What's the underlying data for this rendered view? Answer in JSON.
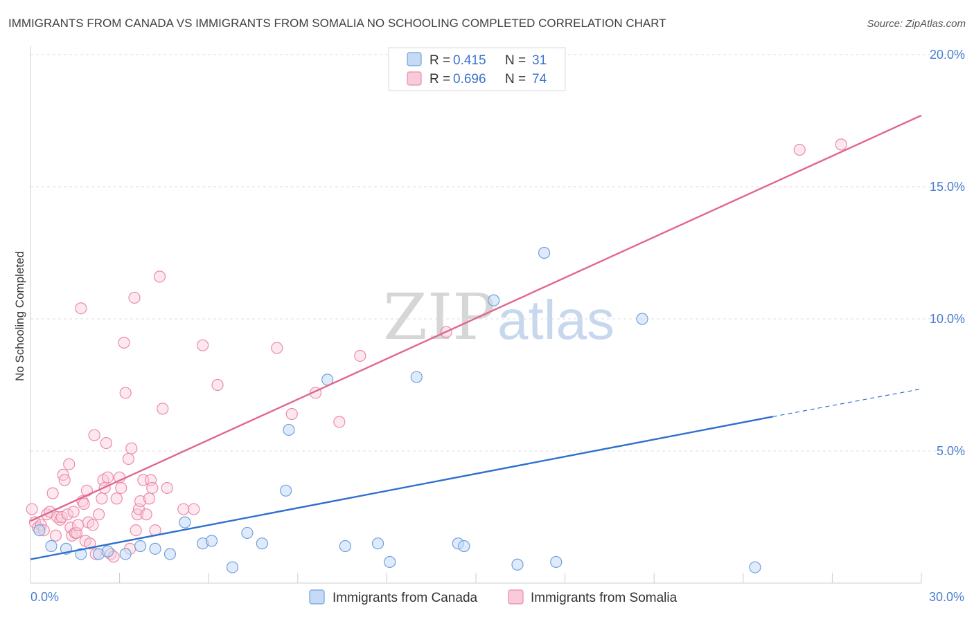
{
  "chart_data": {
    "type": "scatter",
    "title": "IMMIGRANTS FROM CANADA VS IMMIGRANTS FROM SOMALIA NO SCHOOLING COMPLETED CORRELATION CHART",
    "source": "Source: ZipAtlas.com",
    "ylabel": "No Schooling Completed",
    "xlim": [
      0,
      30
    ],
    "ylim": [
      0,
      20.5
    ],
    "x_tick_labels": {
      "left": "0.0%",
      "right": "30.0%"
    },
    "y_ticks": [
      {
        "value": 5,
        "label": "5.0%"
      },
      {
        "value": 10,
        "label": "10.0%"
      },
      {
        "value": 15,
        "label": "15.0%"
      },
      {
        "value": 20,
        "label": "20.0%"
      }
    ],
    "watermark": {
      "zip": "ZIP",
      "atlas": "atlas"
    },
    "legend_box": [
      {
        "r_label": "R =",
        "r_value": "0.415",
        "n_label": "N =",
        "n_value": "31"
      },
      {
        "r_label": "R =",
        "r_value": "0.696",
        "n_label": "N =",
        "n_value": "74"
      }
    ],
    "series": [
      {
        "name": "Immigrants from Canada",
        "color": "#6fa0e0",
        "fill": "#c5daf5",
        "line_color": "#2f6fcf",
        "trend": {
          "x0": 0,
          "y0": 0.9,
          "x1": 25.0,
          "y1": 6.3,
          "x_dash_end": 30,
          "y_dash_end": 7.35
        },
        "points": [
          [
            0.3,
            2.0
          ],
          [
            0.7,
            1.4
          ],
          [
            1.2,
            1.3
          ],
          [
            1.7,
            1.1
          ],
          [
            2.3,
            1.1
          ],
          [
            2.6,
            1.2
          ],
          [
            3.2,
            1.1
          ],
          [
            3.7,
            1.4
          ],
          [
            4.2,
            1.3
          ],
          [
            4.7,
            1.1
          ],
          [
            5.2,
            2.3
          ],
          [
            5.8,
            1.5
          ],
          [
            6.1,
            1.6
          ],
          [
            6.8,
            0.6
          ],
          [
            7.3,
            1.9
          ],
          [
            7.8,
            1.5
          ],
          [
            8.6,
            3.5
          ],
          [
            8.7,
            5.8
          ],
          [
            10.0,
            7.7
          ],
          [
            10.6,
            1.4
          ],
          [
            11.7,
            1.5
          ],
          [
            12.1,
            0.8
          ],
          [
            13.0,
            7.8
          ],
          [
            14.4,
            1.5
          ],
          [
            14.6,
            1.4
          ],
          [
            15.6,
            10.7
          ],
          [
            16.4,
            0.7
          ],
          [
            17.3,
            12.5
          ],
          [
            17.7,
            0.8
          ],
          [
            20.6,
            10.0
          ],
          [
            24.4,
            0.6
          ]
        ]
      },
      {
        "name": "Immigrants from Somalia",
        "color": "#ec8aa8",
        "fill": "#f9cbda",
        "line_color": "#e06690",
        "trend": {
          "x0": 0,
          "y0": 2.35,
          "x1": 30,
          "y1": 17.7
        },
        "points": [
          [
            0.05,
            2.8
          ],
          [
            0.15,
            2.3
          ],
          [
            0.25,
            2.1
          ],
          [
            0.35,
            2.2
          ],
          [
            0.45,
            2.0
          ],
          [
            0.55,
            2.6
          ],
          [
            0.65,
            2.7
          ],
          [
            0.75,
            3.4
          ],
          [
            0.85,
            1.8
          ],
          [
            0.9,
            2.5
          ],
          [
            1.0,
            2.4
          ],
          [
            1.05,
            2.5
          ],
          [
            1.1,
            4.1
          ],
          [
            1.15,
            3.9
          ],
          [
            1.25,
            2.6
          ],
          [
            1.3,
            4.5
          ],
          [
            1.35,
            2.1
          ],
          [
            1.4,
            1.8
          ],
          [
            1.45,
            2.7
          ],
          [
            1.5,
            1.9
          ],
          [
            1.55,
            1.9
          ],
          [
            1.6,
            2.2
          ],
          [
            1.7,
            10.4
          ],
          [
            1.75,
            3.1
          ],
          [
            1.8,
            3.0
          ],
          [
            1.85,
            1.6
          ],
          [
            1.9,
            3.5
          ],
          [
            1.95,
            2.3
          ],
          [
            2.0,
            1.5
          ],
          [
            2.1,
            2.2
          ],
          [
            2.15,
            5.6
          ],
          [
            2.2,
            1.1
          ],
          [
            2.3,
            2.6
          ],
          [
            2.4,
            3.2
          ],
          [
            2.45,
            3.9
          ],
          [
            2.5,
            3.6
          ],
          [
            2.55,
            5.3
          ],
          [
            2.6,
            4.0
          ],
          [
            2.7,
            1.1
          ],
          [
            2.8,
            1.0
          ],
          [
            2.9,
            3.2
          ],
          [
            3.0,
            4.0
          ],
          [
            3.05,
            3.6
          ],
          [
            3.15,
            9.1
          ],
          [
            3.2,
            7.2
          ],
          [
            3.3,
            4.7
          ],
          [
            3.35,
            1.3
          ],
          [
            3.4,
            5.1
          ],
          [
            3.5,
            10.8
          ],
          [
            3.55,
            2.0
          ],
          [
            3.6,
            2.6
          ],
          [
            3.65,
            2.8
          ],
          [
            3.7,
            3.1
          ],
          [
            3.8,
            3.9
          ],
          [
            3.9,
            2.6
          ],
          [
            4.0,
            3.2
          ],
          [
            4.05,
            3.9
          ],
          [
            4.1,
            3.6
          ],
          [
            4.2,
            2.0
          ],
          [
            4.35,
            11.6
          ],
          [
            4.45,
            6.6
          ],
          [
            4.6,
            3.6
          ],
          [
            5.15,
            2.8
          ],
          [
            5.5,
            2.8
          ],
          [
            5.8,
            9.0
          ],
          [
            6.3,
            7.5
          ],
          [
            8.3,
            8.9
          ],
          [
            8.8,
            6.4
          ],
          [
            9.6,
            7.2
          ],
          [
            10.4,
            6.1
          ],
          [
            11.1,
            8.6
          ],
          [
            14.0,
            9.5
          ],
          [
            27.3,
            16.6
          ],
          [
            25.9,
            16.4
          ]
        ]
      }
    ]
  }
}
